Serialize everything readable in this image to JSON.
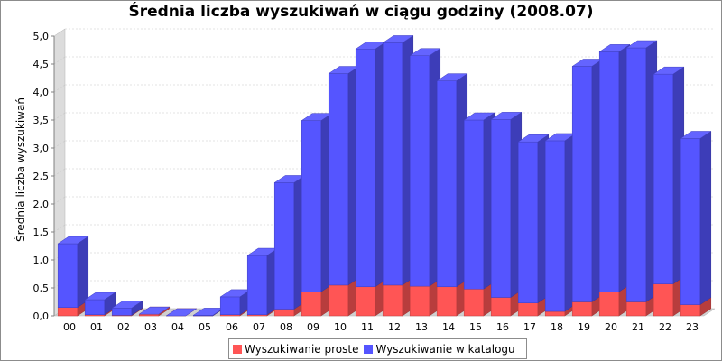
{
  "chart_data": {
    "type": "bar",
    "stacked": true,
    "style": "3d",
    "title": "Średnia liczba wyszukiwań w ciągu godziny (2008.07)",
    "xlabel": "",
    "ylabel": "Średnia liczba wyszukiwań",
    "ylim": [
      0,
      5.0
    ],
    "yticks": [
      "0,0",
      "0,5",
      "1,0",
      "1,5",
      "2,0",
      "2,5",
      "3,0",
      "3,5",
      "4,0",
      "4,5",
      "5,0"
    ],
    "grid": true,
    "legend_position": "bottom",
    "categories": [
      "00",
      "01",
      "02",
      "03",
      "04",
      "05",
      "06",
      "07",
      "08",
      "09",
      "10",
      "11",
      "12",
      "13",
      "14",
      "15",
      "16",
      "17",
      "18",
      "19",
      "20",
      "21",
      "22",
      "23"
    ],
    "series": [
      {
        "name": "Wyszukiwanie proste",
        "color": "#ff5555",
        "values": [
          0.15,
          0.02,
          0.01,
          0.03,
          0.0,
          0.0,
          0.02,
          0.02,
          0.12,
          0.43,
          0.55,
          0.52,
          0.55,
          0.53,
          0.52,
          0.48,
          0.33,
          0.23,
          0.08,
          0.25,
          0.43,
          0.25,
          0.57,
          0.2
        ]
      },
      {
        "name": "Wyszukiwanie w katalogu",
        "color": "#5555ff",
        "values": [
          1.14,
          0.27,
          0.13,
          0.0,
          0.0,
          0.01,
          0.32,
          1.06,
          2.26,
          3.06,
          3.78,
          4.25,
          4.33,
          4.12,
          3.68,
          3.02,
          3.18,
          2.88,
          3.05,
          4.21,
          4.29,
          4.54,
          3.75,
          2.97
        ]
      }
    ]
  }
}
